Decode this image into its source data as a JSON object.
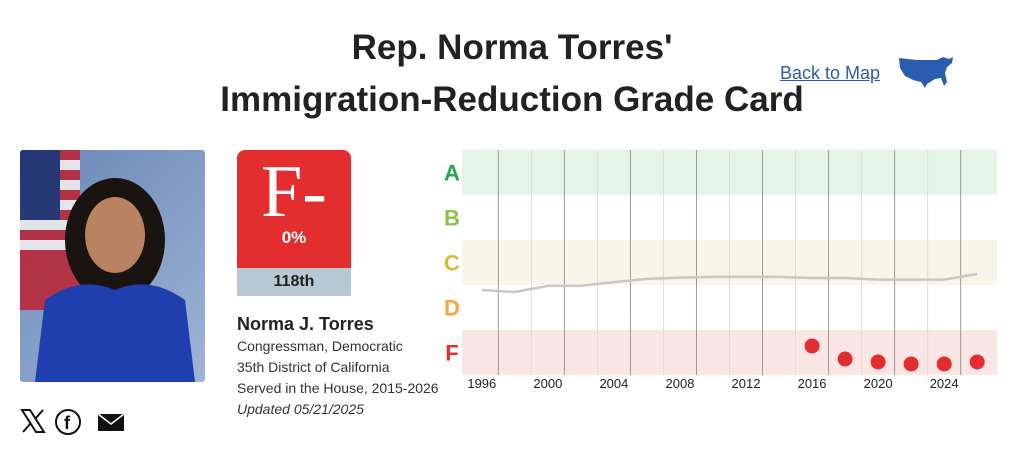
{
  "header": {
    "title_line1": "Rep. Norma Torres'",
    "title_line2": "Immigration-Reduction Grade Card",
    "back_link": "Back to Map",
    "map_icon": "us-map-icon"
  },
  "grade_card": {
    "grade": "F-",
    "percent": "0%",
    "congress": "118th",
    "color": "#e42d2f"
  },
  "member": {
    "name": "Norma J. Torres",
    "role": "Congressman, Democratic",
    "district": "35th District of California",
    "served": "Served in the House, 2015-2026",
    "updated": "Updated 05/21/2025"
  },
  "social": {
    "x_icon": "x-icon",
    "facebook_icon": "facebook-icon",
    "email_icon": "email-icon"
  },
  "chart_data": {
    "type": "line",
    "xlim": [
      1994.8,
      2027.2
    ],
    "ylim": [
      0,
      100
    ],
    "x_ticks": [
      1996,
      2000,
      2004,
      2008,
      2012,
      2016,
      2020,
      2024
    ],
    "grade_bands": [
      {
        "label": "A",
        "range": [
          80,
          100
        ],
        "color": "#22a64a",
        "fill": "#e4f4e8"
      },
      {
        "label": "B",
        "range": [
          60,
          80
        ],
        "color": "#8bc34a",
        "fill": "#ffffff"
      },
      {
        "label": "C",
        "range": [
          40,
          60
        ],
        "color": "#cdbf3a",
        "fill": "#f8f6e8"
      },
      {
        "label": "D",
        "range": [
          20,
          40
        ],
        "color": "#f5a742",
        "fill": "#ffffff"
      },
      {
        "label": "F",
        "range": [
          0,
          20
        ],
        "color": "#e42d2f",
        "fill": "#fbe6e6"
      }
    ],
    "series": [
      {
        "kind": "line",
        "color": "#c8c8c4",
        "points": [
          [
            1996,
            37.8
          ],
          [
            1998,
            36.9
          ],
          [
            2000,
            39.6
          ],
          [
            2002,
            39.6
          ],
          [
            2004,
            41.3
          ],
          [
            2006,
            42.7
          ],
          [
            2008,
            43.3
          ],
          [
            2010,
            43.6
          ],
          [
            2012,
            43.6
          ],
          [
            2014,
            43.6
          ],
          [
            2016,
            43.1
          ],
          [
            2018,
            43.1
          ],
          [
            2020,
            42.4
          ],
          [
            2022,
            42.4
          ],
          [
            2024,
            42.4
          ],
          [
            2026,
            44.9
          ]
        ]
      },
      {
        "kind": "dots",
        "color": "#e42d2f",
        "points": [
          [
            2016,
            12.9
          ],
          [
            2018,
            7.1
          ],
          [
            2020,
            5.8
          ],
          [
            2022,
            4.9
          ],
          [
            2024,
            4.9
          ],
          [
            2026,
            5.8
          ]
        ]
      }
    ]
  }
}
